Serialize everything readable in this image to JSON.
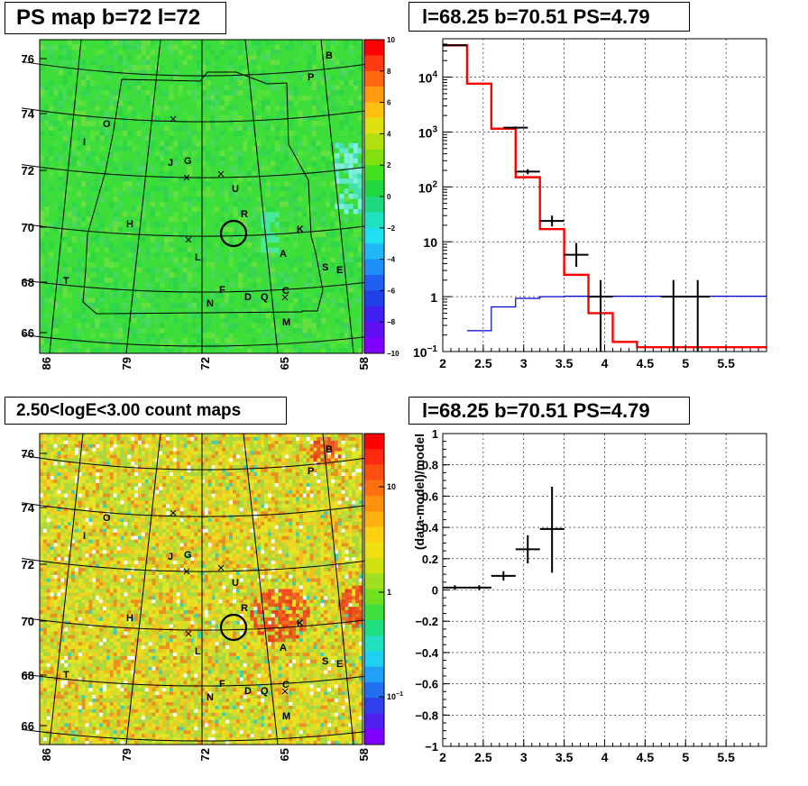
{
  "panels": {
    "psmap": {
      "title": "PS map b=72 l=72"
    },
    "spectrum": {
      "title": "l=68.25 b=70.51 PS=4.79"
    },
    "countmap": {
      "title": "2.50<logE<3.00 count maps"
    },
    "residual": {
      "title": "l=68.25 b=70.51 PS=4.79"
    }
  },
  "chart_data": [
    {
      "type": "heatmap",
      "name_tag": "psmap",
      "x_ticks": [
        "86",
        "79",
        "72",
        "65",
        "58"
      ],
      "y_ticks": [
        "76",
        "74",
        "72",
        "70",
        "68",
        "66"
      ],
      "colorbar": {
        "min": -10,
        "max": 10,
        "ticks": [
          "10",
          "8",
          "6",
          "4",
          "2",
          "0",
          "−2",
          "−4",
          "−6",
          "−8",
          "−10"
        ]
      },
      "base_color": "#33dd33",
      "sources": [
        "B",
        "P",
        "O",
        "I",
        "J",
        "G",
        "U",
        "H",
        "R",
        "K",
        "A",
        "L",
        "S",
        "E",
        "T",
        "F",
        "D",
        "Q",
        "C",
        "N",
        "M"
      ]
    },
    {
      "type": "line",
      "name_tag": "spectrum",
      "xlim": [
        2.0,
        6.0
      ],
      "ylim": [
        0.1,
        50000
      ],
      "yscale": "log",
      "x_ticks": [
        "2",
        "2.5",
        "3",
        "3.5",
        "4",
        "4.5",
        "5",
        "5.5"
      ],
      "y_ticks": [
        "10^-1",
        "1",
        "10",
        "10^2",
        "10^3",
        "10^4"
      ],
      "series": [
        {
          "color": "#ff0000",
          "steps": [
            [
              2.0,
              2.3,
              38000
            ],
            [
              2.3,
              2.6,
              7600
            ],
            [
              2.6,
              2.9,
              1150
            ],
            [
              2.9,
              3.2,
              150
            ],
            [
              3.2,
              3.5,
              17
            ],
            [
              3.5,
              3.8,
              2.5
            ],
            [
              3.8,
              4.1,
              0.5
            ],
            [
              4.1,
              4.4,
              0.15
            ],
            [
              4.4,
              6.0,
              0.12
            ]
          ]
        },
        {
          "color": "#0000cc",
          "steps": [
            [
              2.3,
              2.6,
              0.24
            ],
            [
              2.6,
              2.9,
              0.65
            ],
            [
              2.9,
              3.2,
              0.93
            ],
            [
              3.2,
              3.5,
              1.0
            ],
            [
              3.5,
              6.0,
              1.02
            ]
          ]
        },
        {
          "color": "#000000",
          "points": [
            {
              "x": 2.15,
              "xerr": 0.15,
              "y": 38000,
              "ylo": 37000,
              "yhi": 39000
            },
            {
              "x": 2.9,
              "xerr": 0.15,
              "y": 1200,
              "ylo": 1150,
              "yhi": 1260
            },
            {
              "x": 3.05,
              "xerr": 0.15,
              "y": 190,
              "ylo": 170,
              "yhi": 210
            },
            {
              "x": 3.35,
              "xerr": 0.15,
              "y": 24,
              "ylo": 19,
              "yhi": 30
            },
            {
              "x": 3.65,
              "xerr": 0.15,
              "y": 5.8,
              "ylo": 3.5,
              "yhi": 9.5
            },
            {
              "x": 3.95,
              "xerr": 0.15,
              "y": 1.0,
              "ylo": 0.1,
              "yhi": 2.0
            },
            {
              "x": 4.85,
              "xerr": 0.15,
              "y": 1.0,
              "ylo": 0.1,
              "yhi": 2.0
            },
            {
              "x": 5.15,
              "xerr": 0.15,
              "y": 1.0,
              "ylo": 0.1,
              "yhi": 2.0
            }
          ]
        }
      ]
    },
    {
      "type": "heatmap",
      "name_tag": "countmap",
      "x_ticks": [
        "86",
        "79",
        "72",
        "65",
        "58"
      ],
      "y_ticks": [
        "76",
        "74",
        "72",
        "70",
        "68",
        "66"
      ],
      "colorbar": {
        "scale": "log",
        "ticks": [
          "10",
          "1",
          "10^-1"
        ]
      },
      "sources": [
        "B",
        "P",
        "O",
        "I",
        "J",
        "G",
        "U",
        "H",
        "R",
        "K",
        "A",
        "L",
        "S",
        "E",
        "T",
        "F",
        "D",
        "Q",
        "C",
        "N",
        "M"
      ]
    },
    {
      "type": "scatter",
      "name_tag": "residual",
      "ylabel": "(data-model)/model",
      "xlim": [
        2.0,
        6.0
      ],
      "ylim": [
        -1,
        1
      ],
      "x_ticks": [
        "2",
        "2.5",
        "3",
        "3.5",
        "4",
        "4.5",
        "5",
        "5.5"
      ],
      "y_ticks": [
        "1",
        "0.8",
        "0.6",
        "0.4",
        "0.2",
        "0",
        "−0.2",
        "−0.4",
        "−0.6",
        "−0.8",
        "−1"
      ],
      "points": [
        {
          "x": 2.15,
          "xerr": 0.15,
          "y": 0.015,
          "ylo": 0.0,
          "yhi": 0.03
        },
        {
          "x": 2.45,
          "xerr": 0.15,
          "y": 0.015,
          "ylo": 0.0,
          "yhi": 0.03
        },
        {
          "x": 2.75,
          "xerr": 0.15,
          "y": 0.09,
          "ylo": 0.06,
          "yhi": 0.12
        },
        {
          "x": 3.05,
          "xerr": 0.15,
          "y": 0.26,
          "ylo": 0.17,
          "yhi": 0.35
        },
        {
          "x": 3.35,
          "xerr": 0.15,
          "y": 0.39,
          "ylo": 0.11,
          "yhi": 0.66
        }
      ]
    }
  ]
}
